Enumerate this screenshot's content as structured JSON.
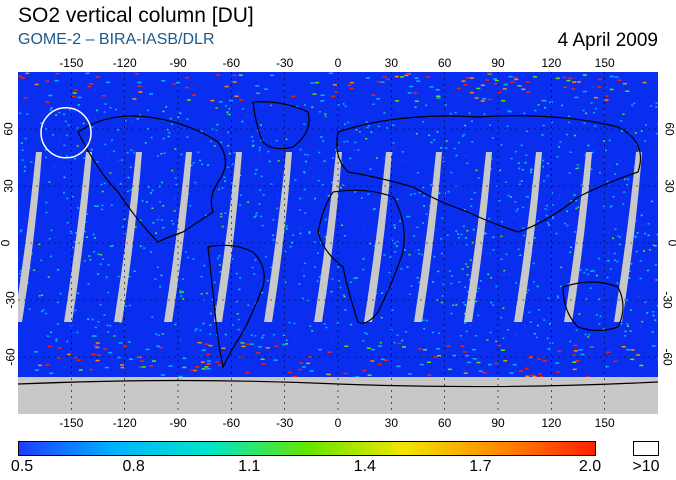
{
  "header": {
    "title": "SO2 vertical column [DU]",
    "subtitle": "GOME-2  –  BIRA-IASB/DLR",
    "date": "4 April 2009"
  },
  "map": {
    "lon_ticks": [
      "-150",
      "-120",
      "-90",
      "-60",
      "-30",
      "0",
      "30",
      "60",
      "90",
      "120",
      "150"
    ],
    "lon_values": [
      -150,
      -120,
      -90,
      -60,
      -30,
      0,
      30,
      60,
      90,
      120,
      150
    ],
    "lat_ticks": [
      "60",
      "30",
      "0",
      "-30",
      "-60"
    ],
    "lat_values": [
      60,
      30,
      0,
      -30,
      -60
    ],
    "lon_range": [
      -180,
      180
    ],
    "lat_range": [
      -90,
      90
    ],
    "background_color": "#0a2ef0",
    "gap_color": "#c8c8c8",
    "highlight_circle_center": {
      "lon": -153,
      "lat": 58
    }
  },
  "colorbar": {
    "labels": [
      "0.5",
      "0.8",
      "1.1",
      "1.4",
      "1.7",
      "2.0"
    ],
    "overflow_label": ">10",
    "colors": [
      "#1e3cff",
      "#00b4ff",
      "#00e6c8",
      "#64e600",
      "#f0e600",
      "#ff8c00",
      "#ff1e00"
    ]
  }
}
